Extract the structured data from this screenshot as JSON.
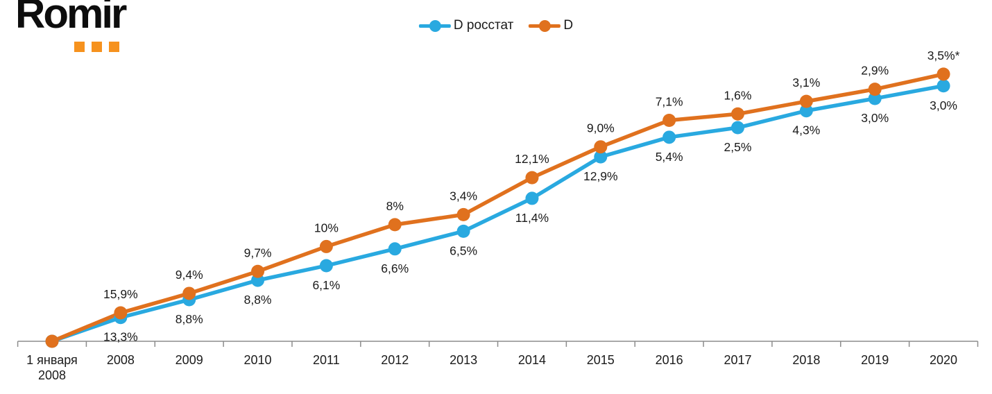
{
  "logo": {
    "text": "Romir",
    "squares": 3,
    "squares_color": "#F6921E"
  },
  "legend": [
    {
      "label": "D росстат",
      "color": "#29A9E0"
    },
    {
      "label": "D",
      "color": "#E0711E"
    }
  ],
  "chart_data": {
    "type": "line",
    "title": "",
    "xlabel": "",
    "ylabel": "",
    "categories": [
      "1 января|2008",
      "2008",
      "2009",
      "2010",
      "2011",
      "2012",
      "2013",
      "2014",
      "2015",
      "2016",
      "2017",
      "2018",
      "2019",
      "2020"
    ],
    "baseline_note": "lines start at 0 on 1 января 2008 and show cumulative growth; point labels show annual rates",
    "ylim_cumulative_pct": [
      0,
      156
    ],
    "grid": "off",
    "legend_position": "top-center",
    "axis_color": "#8c8c8c",
    "text_color": "#1a1a1a",
    "series": [
      {
        "name": "D росстат",
        "color": "#29A9E0",
        "label_position": "below",
        "annual_rates_pct": [
          13.3,
          8.8,
          8.8,
          6.1,
          6.6,
          6.5,
          11.4,
          12.9,
          5.4,
          2.5,
          4.3,
          3.0,
          3.0
        ],
        "labels": [
          "13,3%",
          "8,8%",
          "8,8%",
          "6,1%",
          "6,6%",
          "6,5%",
          "11,4%",
          "12,9%",
          "5,4%",
          "2,5%",
          "4,3%",
          "3,0%",
          "3,0%"
        ]
      },
      {
        "name": "D",
        "color": "#E0711E",
        "label_position": "above",
        "annual_rates_pct": [
          15.9,
          9.4,
          9.7,
          10,
          8,
          3.4,
          12.1,
          9.0,
          7.1,
          1.6,
          3.1,
          2.9,
          3.5
        ],
        "labels": [
          "15,9%",
          "9,4%",
          "9,7%",
          "10%",
          "8%",
          "3,4%",
          "12,1%",
          "9,0%",
          "7,1%",
          "1,6%",
          "3,1%",
          "2,9%",
          "3,5%*"
        ]
      }
    ]
  }
}
